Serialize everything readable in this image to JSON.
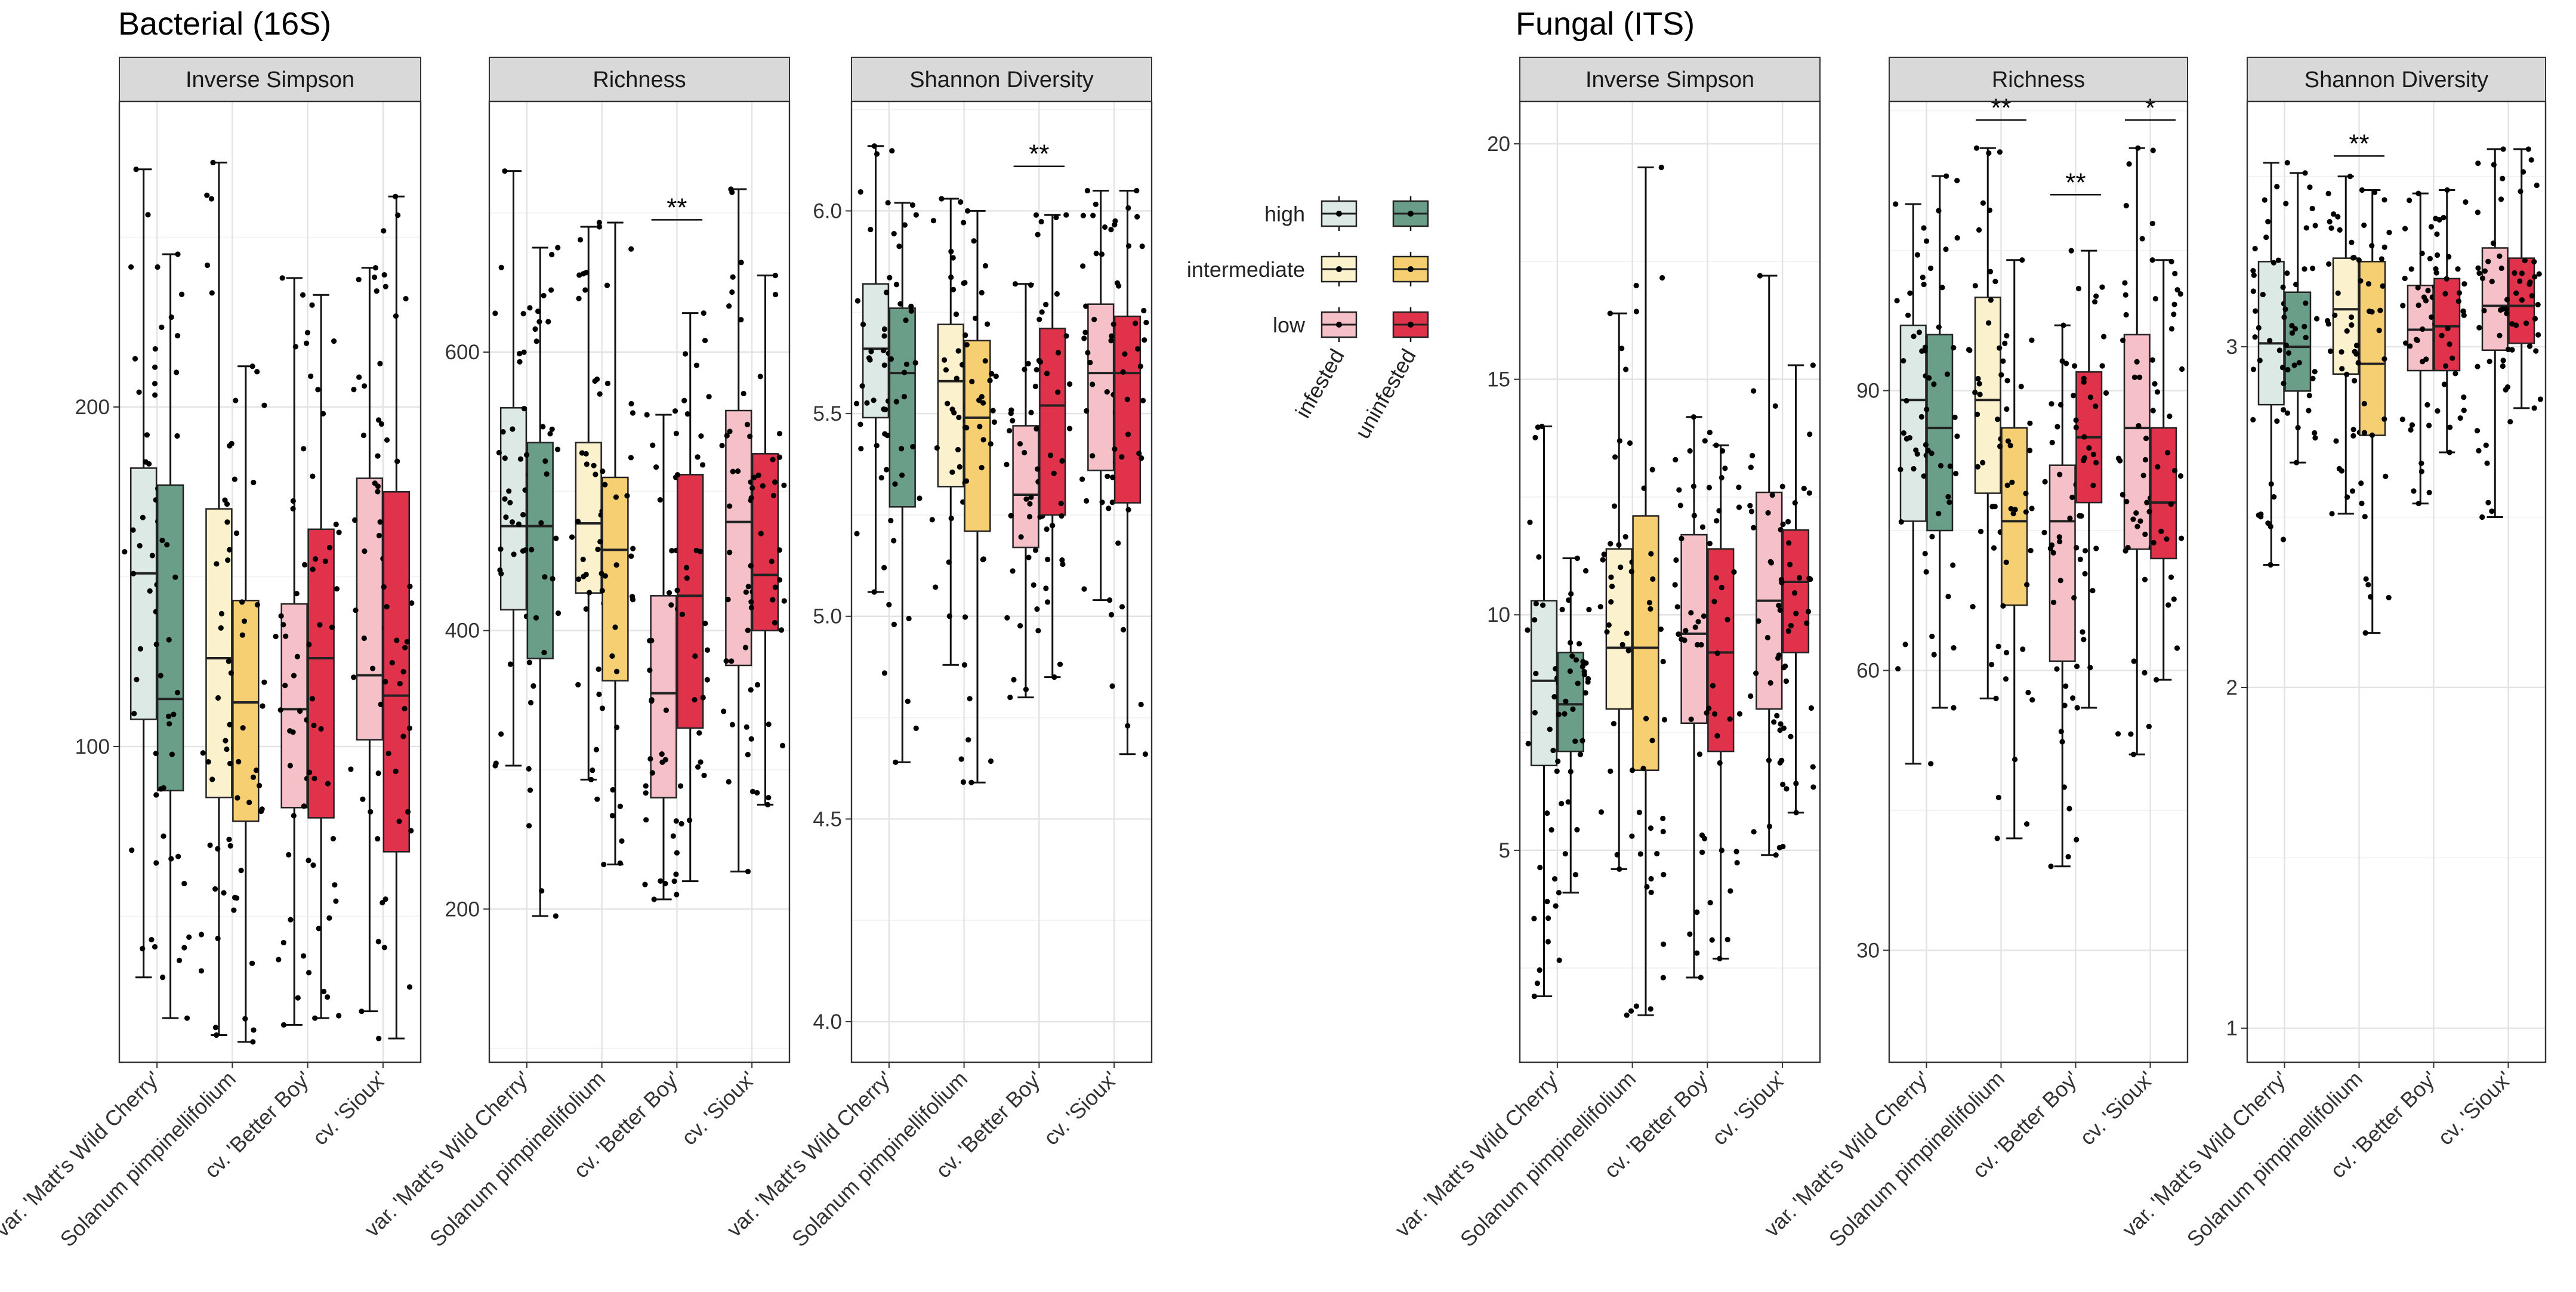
{
  "chart_data": {
    "type": "box",
    "legend": {
      "levels": [
        "high",
        "intermediate",
        "low"
      ],
      "groups": [
        "infested",
        "uninfested"
      ],
      "colors": {
        "high": {
          "infested": "#dce9e4",
          "uninfested": "#6a9e88"
        },
        "intermediate": {
          "infested": "#fbf1cc",
          "uninfested": "#f6cf73"
        },
        "low": {
          "infested": "#f5c0c8",
          "uninfested": "#e0334b"
        }
      },
      "placement": "center"
    },
    "categories": [
      "var. 'Matt's Wild Cherry'",
      "Solanum pimpinellifolium",
      "cv. 'Better Boy'",
      "cv. 'Sioux'"
    ],
    "category_level": [
      "high",
      "intermediate",
      "low",
      "low"
    ],
    "sections": [
      {
        "title": "Bacterial (16S)",
        "panels": [
          {
            "facet": "Inverse Simpson",
            "ylim": [
              7,
              290
            ],
            "yticks": [
              100,
              200
            ],
            "groups": [
              {
                "category": 0,
                "infested": {
                  "min": 32,
                  "q1": 108,
                  "median": 151,
                  "q3": 182,
                  "max": 270
                },
                "uninfested": {
                  "min": 20,
                  "q1": 87,
                  "median": 114,
                  "q3": 177,
                  "max": 245
                }
              },
              {
                "category": 1,
                "infested": {
                  "min": 15,
                  "q1": 85,
                  "median": 126,
                  "q3": 170,
                  "max": 272
                },
                "uninfested": {
                  "min": 13,
                  "q1": 78,
                  "median": 113,
                  "q3": 143,
                  "max": 212
                }
              },
              {
                "category": 2,
                "infested": {
                  "min": 18,
                  "q1": 82,
                  "median": 111,
                  "q3": 142,
                  "max": 238
                },
                "uninfested": {
                  "min": 20,
                  "q1": 79,
                  "median": 126,
                  "q3": 164,
                  "max": 233
                }
              },
              {
                "category": 3,
                "infested": {
                  "min": 22,
                  "q1": 102,
                  "median": 121,
                  "q3": 179,
                  "max": 241
                },
                "uninfested": {
                  "min": 14,
                  "q1": 69,
                  "median": 115,
                  "q3": 175,
                  "max": 262
                }
              }
            ],
            "significance": []
          },
          {
            "facet": "Richness",
            "ylim": [
              90,
              780
            ],
            "yticks": [
              200,
              400,
              600
            ],
            "groups": [
              {
                "category": 0,
                "infested": {
                  "min": 303,
                  "q1": 415,
                  "median": 475,
                  "q3": 560,
                  "max": 730
                },
                "uninfested": {
                  "min": 195,
                  "q1": 380,
                  "median": 475,
                  "q3": 535,
                  "max": 675
                }
              },
              {
                "category": 1,
                "infested": {
                  "min": 293,
                  "q1": 427,
                  "median": 477,
                  "q3": 535,
                  "max": 690
                },
                "uninfested": {
                  "min": 232,
                  "q1": 364,
                  "median": 458,
                  "q3": 510,
                  "max": 693
                }
              },
              {
                "category": 2,
                "infested": {
                  "min": 207,
                  "q1": 280,
                  "median": 355,
                  "q3": 425,
                  "max": 555
                },
                "uninfested": {
                  "min": 220,
                  "q1": 330,
                  "median": 425,
                  "q3": 512,
                  "max": 628
                }
              },
              {
                "category": 3,
                "infested": {
                  "min": 227,
                  "q1": 375,
                  "median": 478,
                  "q3": 558,
                  "max": 717
                },
                "uninfested": {
                  "min": 275,
                  "q1": 400,
                  "median": 440,
                  "q3": 527,
                  "max": 655
                }
              }
            ],
            "significance": [
              {
                "category": 2,
                "label": "**",
                "y": 695
              }
            ]
          },
          {
            "facet": "Shannon Diversity",
            "ylim": [
              3.9,
              6.27
            ],
            "yticks": [
              4.0,
              4.5,
              5.0,
              5.5,
              6.0
            ],
            "groups": [
              {
                "category": 0,
                "infested": {
                  "min": 5.06,
                  "q1": 5.49,
                  "median": 5.66,
                  "q3": 5.82,
                  "max": 6.16
                },
                "uninfested": {
                  "min": 4.64,
                  "q1": 5.27,
                  "median": 5.6,
                  "q3": 5.76,
                  "max": 6.02
                }
              },
              {
                "category": 1,
                "infested": {
                  "min": 4.88,
                  "q1": 5.32,
                  "median": 5.58,
                  "q3": 5.72,
                  "max": 6.03
                },
                "uninfested": {
                  "min": 4.59,
                  "q1": 5.21,
                  "median": 5.49,
                  "q3": 5.68,
                  "max": 6.0
                }
              },
              {
                "category": 2,
                "infested": {
                  "min": 4.8,
                  "q1": 5.17,
                  "median": 5.3,
                  "q3": 5.47,
                  "max": 5.82
                },
                "uninfested": {
                  "min": 4.85,
                  "q1": 5.25,
                  "median": 5.52,
                  "q3": 5.71,
                  "max": 5.99
                }
              },
              {
                "category": 3,
                "infested": {
                  "min": 5.04,
                  "q1": 5.36,
                  "median": 5.6,
                  "q3": 5.77,
                  "max": 6.05
                },
                "uninfested": {
                  "min": 4.66,
                  "q1": 5.28,
                  "median": 5.6,
                  "q3": 5.74,
                  "max": 6.05
                }
              }
            ],
            "significance": [
              {
                "category": 2,
                "label": "**",
                "y": 6.11
              }
            ]
          }
        ]
      },
      {
        "title": "Fungal (ITS)",
        "panels": [
          {
            "facet": "Inverse Simpson",
            "ylim": [
              0.5,
              20.9
            ],
            "yticks": [
              5,
              10,
              15,
              20
            ],
            "groups": [
              {
                "category": 0,
                "infested": {
                  "min": 1.9,
                  "q1": 6.8,
                  "median": 8.6,
                  "q3": 10.3,
                  "max": 14.0
                },
                "uninfested": {
                  "min": 4.1,
                  "q1": 7.1,
                  "median": 8.1,
                  "q3": 9.2,
                  "max": 11.2
                }
              },
              {
                "category": 1,
                "infested": {
                  "min": 4.6,
                  "q1": 8.0,
                  "median": 9.3,
                  "q3": 11.4,
                  "max": 16.4
                },
                "uninfested": {
                  "min": 1.5,
                  "q1": 6.7,
                  "median": 9.3,
                  "q3": 12.1,
                  "max": 19.5
                }
              },
              {
                "category": 2,
                "infested": {
                  "min": 2.3,
                  "q1": 7.7,
                  "median": 9.6,
                  "q3": 11.7,
                  "max": 14.2
                },
                "uninfested": {
                  "min": 2.7,
                  "q1": 7.1,
                  "median": 9.2,
                  "q3": 11.4,
                  "max": 13.6
                }
              },
              {
                "category": 3,
                "infested": {
                  "min": 4.9,
                  "q1": 8.0,
                  "median": 10.3,
                  "q3": 12.6,
                  "max": 17.2
                },
                "uninfested": {
                  "min": 5.8,
                  "q1": 9.2,
                  "median": 10.7,
                  "q3": 11.8,
                  "max": 15.3
                }
              }
            ],
            "significance": []
          },
          {
            "facet": "Richness",
            "ylim": [
              18,
              121
            ],
            "yticks": [
              30,
              60,
              90
            ],
            "groups": [
              {
                "category": 0,
                "infested": {
                  "min": 50,
                  "q1": 76,
                  "median": 89,
                  "q3": 97,
                  "max": 110
                },
                "uninfested": {
                  "min": 56,
                  "q1": 75,
                  "median": 86,
                  "q3": 96,
                  "max": 113
                }
              },
              {
                "category": 1,
                "infested": {
                  "min": 57,
                  "q1": 79,
                  "median": 89,
                  "q3": 100,
                  "max": 116
                },
                "uninfested": {
                  "min": 42,
                  "q1": 67,
                  "median": 76,
                  "q3": 86,
                  "max": 104
                }
              },
              {
                "category": 2,
                "infested": {
                  "min": 39,
                  "q1": 61,
                  "median": 76,
                  "q3": 82,
                  "max": 97
                },
                "uninfested": {
                  "min": 56,
                  "q1": 78,
                  "median": 85,
                  "q3": 92,
                  "max": 105
                }
              },
              {
                "category": 3,
                "infested": {
                  "min": 51,
                  "q1": 73,
                  "median": 86,
                  "q3": 96,
                  "max": 116
                },
                "uninfested": {
                  "min": 59,
                  "q1": 72,
                  "median": 78,
                  "q3": 86,
                  "max": 104
                }
              }
            ],
            "significance": [
              {
                "category": 1,
                "label": "**",
                "y": 119
              },
              {
                "category": 2,
                "label": "**",
                "y": 111
              },
              {
                "category": 3,
                "label": "*",
                "y": 119
              }
            ]
          },
          {
            "facet": "Shannon Diversity",
            "ylim": [
              0.9,
              3.72
            ],
            "yticks": [
              1,
              2,
              3
            ],
            "groups": [
              {
                "category": 0,
                "infested": {
                  "min": 2.36,
                  "q1": 2.83,
                  "median": 3.01,
                  "q3": 3.25,
                  "max": 3.54
                },
                "uninfested": {
                  "min": 2.66,
                  "q1": 2.87,
                  "median": 3.0,
                  "q3": 3.16,
                  "max": 3.51
                }
              },
              {
                "category": 1,
                "infested": {
                  "min": 2.51,
                  "q1": 2.92,
                  "median": 3.11,
                  "q3": 3.26,
                  "max": 3.5
                },
                "uninfested": {
                  "min": 2.16,
                  "q1": 2.74,
                  "median": 2.95,
                  "q3": 3.25,
                  "max": 3.46
                }
              },
              {
                "category": 2,
                "infested": {
                  "min": 2.54,
                  "q1": 2.93,
                  "median": 3.05,
                  "q3": 3.18,
                  "max": 3.45
                },
                "uninfested": {
                  "min": 2.69,
                  "q1": 2.93,
                  "median": 3.06,
                  "q3": 3.2,
                  "max": 3.46
                }
              },
              {
                "category": 3,
                "infested": {
                  "min": 2.5,
                  "q1": 2.99,
                  "median": 3.12,
                  "q3": 3.29,
                  "max": 3.58
                },
                "uninfested": {
                  "min": 2.82,
                  "q1": 3.01,
                  "median": 3.12,
                  "q3": 3.26,
                  "max": 3.58
                }
              }
            ],
            "significance": [
              {
                "category": 1,
                "label": "**",
                "y": 3.56
              }
            ]
          }
        ]
      }
    ]
  }
}
